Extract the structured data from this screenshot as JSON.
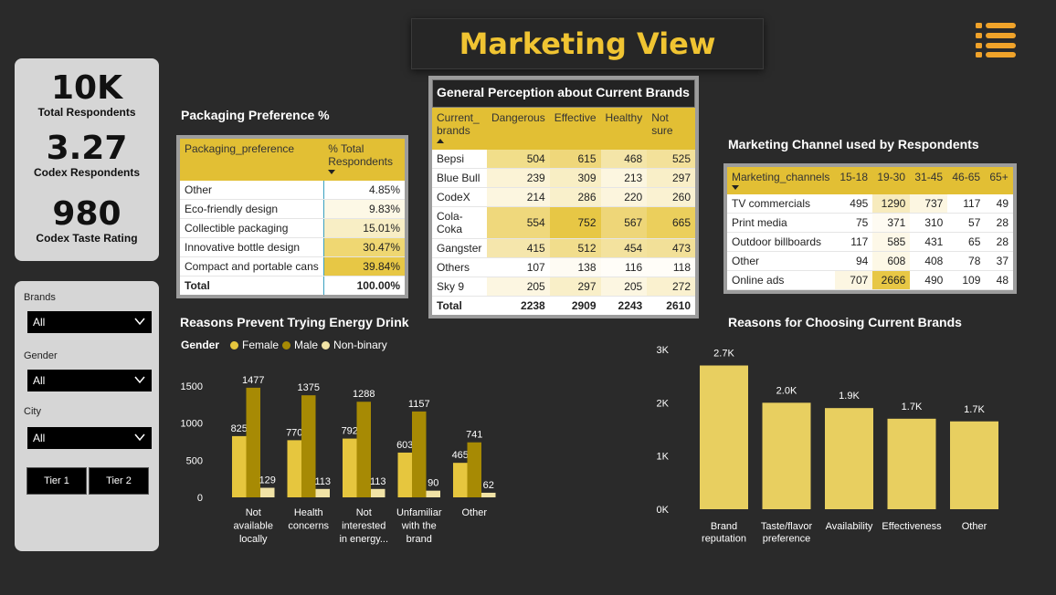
{
  "header": {
    "title": "Marketing View",
    "menu_icon": "hamburger-menu-icon"
  },
  "kpis": [
    {
      "value": "10K",
      "label": "Total Respondents"
    },
    {
      "value": "3.27",
      "label": "Codex Respondents"
    },
    {
      "value": "980",
      "label": "Codex Taste Rating"
    }
  ],
  "filters": {
    "brands_label": "Brands",
    "brands_value": "All",
    "gender_label": "Gender",
    "gender_value": "All",
    "city_label": "City",
    "city_value": "All",
    "tier1": "Tier 1",
    "tier2": "Tier 2"
  },
  "packaging": {
    "title": "Packaging Preference %",
    "col1": "Packaging_preference",
    "col2": "% Total Respondents",
    "rows": [
      {
        "name": "Other",
        "value": "4.85%",
        "shade": "#ffffff"
      },
      {
        "name": "Eco-friendly design",
        "value": "9.83%",
        "shade": "#fdf8e6"
      },
      {
        "name": "Collectible packaging",
        "value": "15.01%",
        "shade": "#f8eec5"
      },
      {
        "name": "Innovative bottle design",
        "value": "30.47%",
        "shade": "#efd772"
      },
      {
        "name": "Compact and portable cans",
        "value": "39.84%",
        "shade": "#e7c745"
      }
    ],
    "total_label": "Total",
    "total_value": "100.00%"
  },
  "perception": {
    "title": "General Perception about Current Brands",
    "columns": [
      "Current_ brands",
      "Dangerous",
      "Effective",
      "Healthy",
      "Not sure"
    ],
    "rows": [
      {
        "brand": "Bepsi",
        "values": [
          "504",
          "615",
          "468",
          "525"
        ],
        "shades": [
          "#f1de8a",
          "#efd77a",
          "#f4e5a8",
          "#f3e19a"
        ]
      },
      {
        "brand": "Blue Bull",
        "values": [
          "239",
          "309",
          "213",
          "297"
        ],
        "shades": [
          "#fbf3d6",
          "#f8eec4",
          "#fcf6e0",
          "#f9efc8"
        ]
      },
      {
        "brand": "CodeX",
        "values": [
          "214",
          "286",
          "220",
          "260"
        ],
        "shades": [
          "#fcf6e0",
          "#f9f0cb",
          "#fcf5dd",
          "#faf2d2"
        ]
      },
      {
        "brand": "Cola-Coka",
        "values": [
          "554",
          "752",
          "567",
          "665"
        ],
        "shades": [
          "#efd87c",
          "#e7c745",
          "#eed678",
          "#ebcf5c"
        ]
      },
      {
        "brand": "Gangster",
        "values": [
          "415",
          "512",
          "454",
          "473"
        ],
        "shades": [
          "#f5e6ac",
          "#f1dd8c",
          "#f3e29e",
          "#f2e098"
        ]
      },
      {
        "brand": "Others",
        "values": [
          "107",
          "138",
          "116",
          "118"
        ],
        "shades": [
          "#ffffff",
          "#fefbf3",
          "#fffdf8",
          "#fffdf8"
        ]
      },
      {
        "brand": "Sky 9",
        "values": [
          "205",
          "297",
          "205",
          "272"
        ],
        "shades": [
          "#fcf6e1",
          "#f9efc8",
          "#fcf6e1",
          "#faf1cf"
        ]
      }
    ],
    "total": [
      "Total",
      "2238",
      "2909",
      "2243",
      "2610"
    ]
  },
  "channels": {
    "title": "Marketing Channel used by Respondents",
    "columns": [
      "Marketing_channels",
      "15-18",
      "19-30",
      "31-45",
      "46-65",
      "65+"
    ],
    "rows": [
      {
        "name": "TV commercials",
        "values": [
          "495",
          "1290",
          "737",
          "117",
          "49"
        ],
        "shades": [
          "#ffffff",
          "#f7ebbd",
          "#fcf6e1",
          "#ffffff",
          "#ffffff"
        ]
      },
      {
        "name": "Print media",
        "values": [
          "75",
          "371",
          "310",
          "57",
          "28"
        ],
        "shades": [
          "#ffffff",
          "#fefbf2",
          "#ffffff",
          "#ffffff",
          "#ffffff"
        ]
      },
      {
        "name": "Outdoor billboards",
        "values": [
          "117",
          "585",
          "431",
          "65",
          "28"
        ],
        "shades": [
          "#ffffff",
          "#fdf8e8",
          "#ffffff",
          "#ffffff",
          "#ffffff"
        ]
      },
      {
        "name": "Other",
        "values": [
          "94",
          "608",
          "408",
          "78",
          "37"
        ],
        "shades": [
          "#ffffff",
          "#fdf8e6",
          "#ffffff",
          "#ffffff",
          "#ffffff"
        ]
      },
      {
        "name": "Online ads",
        "values": [
          "707",
          "2666",
          "490",
          "109",
          "48"
        ],
        "shades": [
          "#fcf6e2",
          "#e7c745",
          "#ffffff",
          "#ffffff",
          "#ffffff"
        ]
      }
    ]
  },
  "chart_data": [
    {
      "type": "bar",
      "title": "Reasons Prevent Trying Energy Drink",
      "legend_title": "Gender",
      "legend_position": "top-left",
      "categories": [
        "Not available locally",
        "Health concerns",
        "Not interested in energy...",
        "Unfamiliar with the brand",
        "Other"
      ],
      "category_lines": [
        [
          "Not",
          "available",
          "locally"
        ],
        [
          "Health",
          "concerns"
        ],
        [
          "Not",
          "interested",
          "in energy..."
        ],
        [
          "Unfamiliar",
          "with the",
          "brand"
        ],
        [
          "Other"
        ]
      ],
      "series": [
        {
          "name": "Female",
          "color": "#e6c63e",
          "values": [
            825,
            770,
            792,
            603,
            465
          ]
        },
        {
          "name": "Male",
          "color": "#a78a04",
          "values": [
            1477,
            1375,
            1288,
            1157,
            741
          ]
        },
        {
          "name": "Non-binary",
          "color": "#f1e3a6",
          "values": [
            129,
            113,
            113,
            90,
            62
          ]
        }
      ],
      "yticks": [
        "0",
        "500",
        "1000",
        "1500"
      ],
      "ylim": [
        0,
        1600
      ],
      "grid": false
    },
    {
      "type": "bar",
      "title": "Reasons for Choosing Current Brands",
      "categories": [
        "Brand reputation",
        "Taste/flavor preference",
        "Availability",
        "Effectiveness",
        "Other"
      ],
      "category_lines": [
        [
          "Brand",
          "reputation"
        ],
        [
          "Taste/flavor",
          "preference"
        ],
        [
          "Availability"
        ],
        [
          "Effectiveness"
        ],
        [
          "Other"
        ]
      ],
      "values": [
        2700,
        2000,
        1900,
        1700,
        1650
      ],
      "labels": [
        "2.7K",
        "2.0K",
        "1.9K",
        "1.7K",
        "1.7K"
      ],
      "color": "#e8cf60",
      "yticks": [
        "0K",
        "1K",
        "2K",
        "3K"
      ],
      "ylim": [
        0,
        3000
      ],
      "grid": false
    }
  ]
}
